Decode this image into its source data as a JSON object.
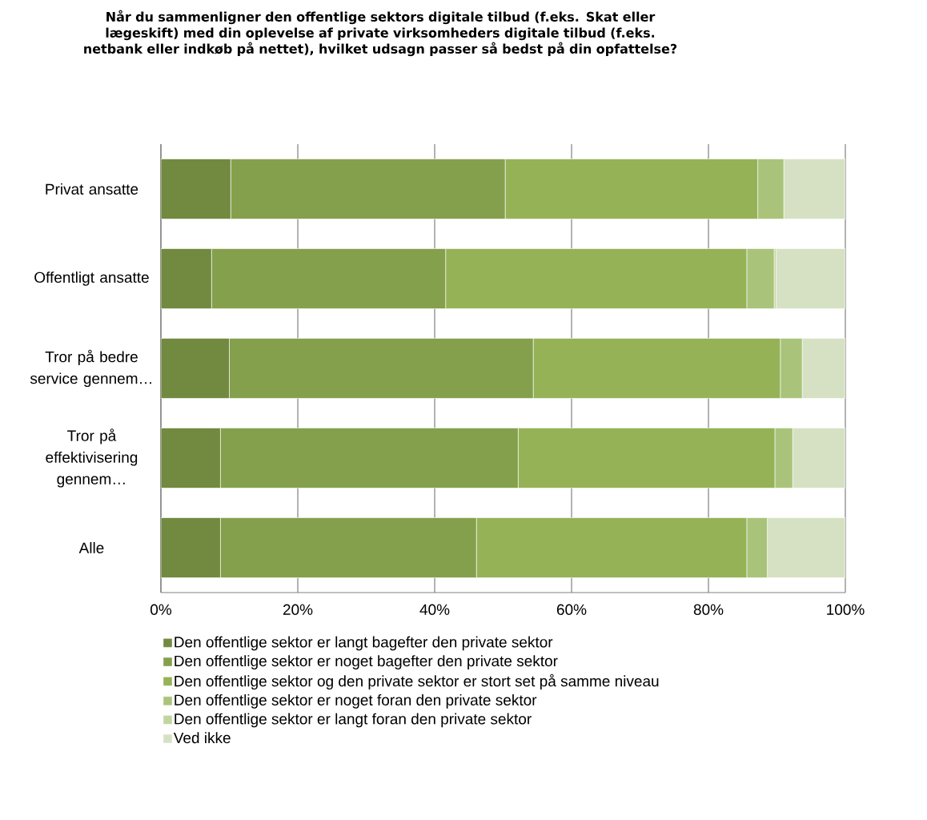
{
  "chart_data": {
    "type": "bar",
    "orientation": "horizontal",
    "stacked": true,
    "title": "Når du sammenligner den offentlige sektors digitale tilbud (f.eks. Skat eller lægeskift) med din oplevelse af private virksomheders digitale tilbud (f.eks. netbank eller indkøb på nettet), hvilket udsagn passer så bedst på din opfattelse?",
    "categories": [
      "Privat ansatte",
      "Offentligt ansatte",
      "Tror på bedre service gennem…",
      "Tror på effektivisering gennem…",
      "Alle"
    ],
    "series": [
      {
        "name": "Den offentlige sektor er langt bagefter den private sektor",
        "color": "#718a3f",
        "values": [
          10.2,
          7.4,
          10.0,
          8.7,
          8.7
        ]
      },
      {
        "name": "Den offentlige sektor er noget bagefter den private sektor",
        "color": "#85a04c",
        "values": [
          40.1,
          34.2,
          44.4,
          43.5,
          37.4
        ]
      },
      {
        "name": "Den offentlige sektor og den private sektor er stort set på samme niveau",
        "color": "#96b257",
        "values": [
          36.9,
          44.0,
          36.1,
          37.5,
          39.5
        ]
      },
      {
        "name": "Den offentlige sektor er noget foran den private sektor",
        "color": "#a9c47a",
        "values": [
          3.8,
          4.0,
          3.2,
          2.6,
          3.0
        ]
      },
      {
        "name": "Den offentlige sektor er langt foran den private sektor",
        "color": "#c2d5a0",
        "values": [
          0,
          0.3,
          0,
          0,
          0
        ]
      },
      {
        "name": "Ved ikke",
        "color": "#d6e1c4",
        "values": [
          9.0,
          10.1,
          6.3,
          7.7,
          11.4
        ]
      }
    ],
    "xlim": [
      0,
      100
    ],
    "xticks": [
      {
        "value": 0,
        "label": "0%"
      },
      {
        "value": 20,
        "label": "20%"
      },
      {
        "value": 40,
        "label": "40%"
      },
      {
        "value": 60,
        "label": "60%"
      },
      {
        "value": 80,
        "label": "80%"
      },
      {
        "value": 100,
        "label": "100%"
      }
    ],
    "grid": "x",
    "legend": "bottom"
  }
}
